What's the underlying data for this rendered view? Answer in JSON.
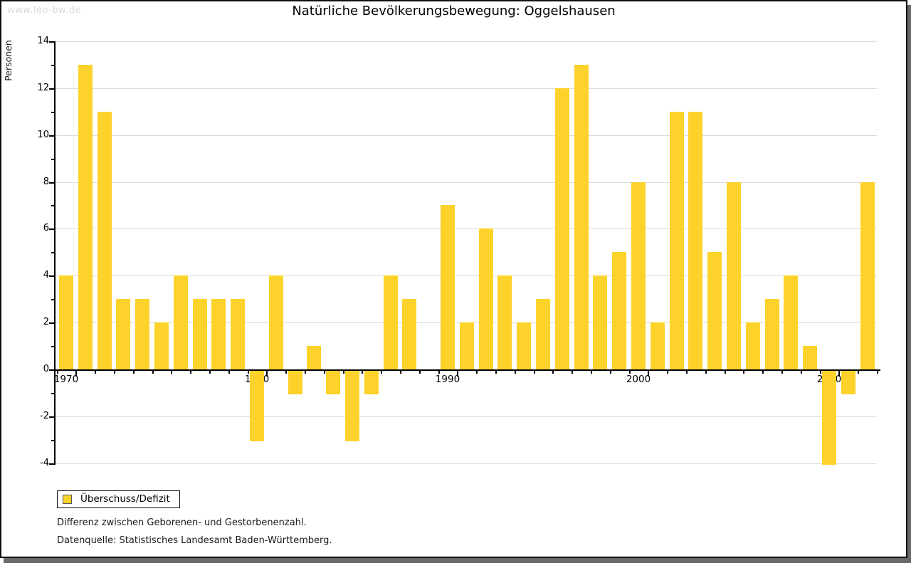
{
  "watermark": "www.leo-bw.de",
  "header": {
    "title": "Natürliche Bevölkerungsbewegung: Oggelshausen"
  },
  "legend": {
    "label": "Überschuss/Defizit"
  },
  "footnotes": {
    "line1": "Differenz zwischen Geborenen- und Gestorbenenzahl.",
    "line2": "Datenquelle: Statistisches Landesamt Baden-Württemberg."
  },
  "colors": {
    "bar": "#FDD32B",
    "grid": "#DCDCDC",
    "axis": "#000000",
    "text": "#000000",
    "watermark": "#D9D9D9",
    "frame_shadow": "#696969"
  },
  "chart_data": {
    "type": "bar",
    "title": "Natürliche Bevölkerungsbewegung: Oggelshausen",
    "ylabel": "Personen",
    "xlabel": "",
    "series_name": "Überschuss/Defizit",
    "categories": [
      1970,
      1971,
      1972,
      1973,
      1974,
      1975,
      1976,
      1977,
      1978,
      1979,
      1980,
      1981,
      1982,
      1983,
      1984,
      1985,
      1986,
      1987,
      1988,
      1989,
      1990,
      1991,
      1992,
      1993,
      1994,
      1995,
      1996,
      1997,
      1998,
      1999,
      2000,
      2001,
      2002,
      2003,
      2004,
      2005,
      2006,
      2007,
      2008,
      2009,
      2010,
      2011,
      2012
    ],
    "values": [
      4,
      13,
      11,
      3,
      3,
      2,
      4,
      3,
      3,
      3,
      -3,
      4,
      -1,
      1,
      -1,
      -3,
      -1,
      4,
      3,
      0,
      7,
      2,
      6,
      4,
      2,
      3,
      12,
      13,
      4,
      5,
      8,
      2,
      11,
      11,
      5,
      8,
      2,
      3,
      4,
      1,
      -4,
      -1,
      8
    ],
    "ylim": [
      -4,
      14
    ],
    "ytick_step": 2,
    "ytick_labels": [
      "14",
      "12",
      "10",
      "8",
      "6",
      "4",
      "2",
      "0",
      "-2",
      "-4"
    ],
    "xtick_labels": [
      "1970",
      "1980",
      "1990",
      "2000",
      "2010"
    ],
    "grid": "horizontal",
    "legend_position": "bottom-left"
  }
}
